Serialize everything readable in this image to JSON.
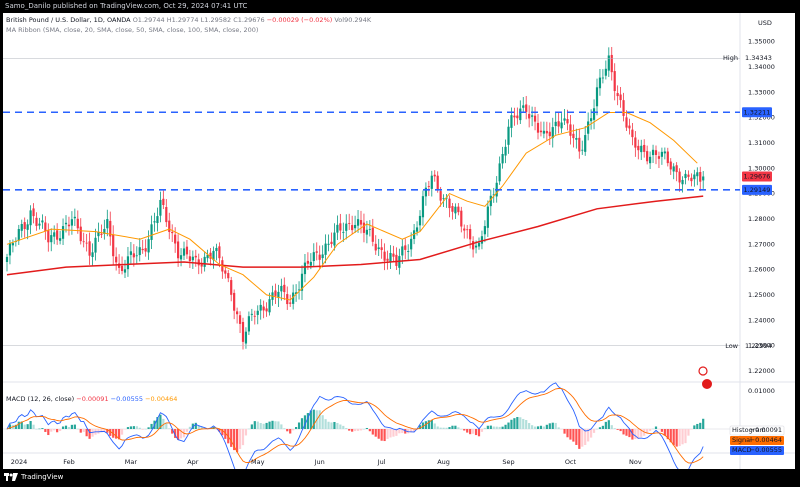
{
  "header": {
    "published_by": "Samo_Danilo published on TradingView.com, Oct 29, 2024 07:41 UTC"
  },
  "legend": {
    "symbol": "British Pound / U.S. Dollar, 1D, OANDA",
    "open": "O1.29744",
    "high": "H1.29774",
    "low": "L1.29582",
    "close": "C1.29676",
    "change": "−0.00029 (−0.02%)",
    "volume": "Vol90.294K",
    "ribbon": "MA Ribbon (SMA, close, 20, SMA, close, 50, SMA, close, 100, SMA, close, 200)",
    "macd_label": "MACD (12, 26, close)",
    "macd_v1": "−0.00091",
    "macd_v2": "−0.00555",
    "macd_v3": "−0.00464"
  },
  "currency": "USD",
  "footer": {
    "brand": "TradingView"
  },
  "colors": {
    "up": "#089981",
    "down": "#f23645",
    "sma20": "#ff9800",
    "sma200": "#e21b1b",
    "level": "#2962ff",
    "macd": "#2962ff",
    "signal": "#ff6d00"
  },
  "chart_data": {
    "type": "candlestick",
    "price_axis": {
      "ticks": [
        "1.35000",
        "1.34000",
        "1.33000",
        "1.32000",
        "1.31000",
        "1.30000",
        "1.29000",
        "1.28000",
        "1.27000",
        "1.26000",
        "1.25000",
        "1.24000",
        "1.23000",
        "1.22000"
      ],
      "range": [
        1.218,
        1.353
      ]
    },
    "time_axis": [
      "2024",
      "Feb",
      "Mar",
      "Apr",
      "May",
      "Jun",
      "Jul",
      "Aug",
      "Sep",
      "Oct",
      "Nov"
    ],
    "markers": {
      "high": {
        "label": "High",
        "value": "1.34343"
      },
      "low": {
        "label": "Low",
        "value": "1.22994"
      },
      "levels": [
        {
          "value": 1.32211,
          "label": "1.32211"
        },
        {
          "value": 1.29149,
          "label": "1.29149"
        }
      ],
      "last": {
        "value": 1.29676,
        "label": "1.29676"
      }
    },
    "anchors": [
      [
        0,
        1.265
      ],
      [
        8,
        1.283
      ],
      [
        14,
        1.272
      ],
      [
        22,
        1.279
      ],
      [
        28,
        1.268
      ],
      [
        34,
        1.277
      ],
      [
        38,
        1.26
      ],
      [
        46,
        1.268
      ],
      [
        52,
        1.285
      ],
      [
        58,
        1.268
      ],
      [
        64,
        1.262
      ],
      [
        70,
        1.268
      ],
      [
        76,
        1.252
      ],
      [
        80,
        1.233
      ],
      [
        84,
        1.243
      ],
      [
        92,
        1.251
      ],
      [
        96,
        1.248
      ],
      [
        102,
        1.262
      ],
      [
        110,
        1.272
      ],
      [
        118,
        1.28
      ],
      [
        124,
        1.271
      ],
      [
        132,
        1.262
      ],
      [
        138,
        1.275
      ],
      [
        144,
        1.297
      ],
      [
        150,
        1.285
      ],
      [
        156,
        1.275
      ],
      [
        160,
        1.268
      ],
      [
        164,
        1.287
      ],
      [
        170,
        1.316
      ],
      [
        176,
        1.325
      ],
      [
        182,
        1.311
      ],
      [
        188,
        1.321
      ],
      [
        194,
        1.306
      ],
      [
        200,
        1.33
      ],
      [
        204,
        1.342
      ],
      [
        208,
        1.326
      ],
      [
        212,
        1.309
      ],
      [
        218,
        1.306
      ],
      [
        224,
        1.303
      ],
      [
        230,
        1.295
      ],
      [
        234,
        1.296
      ],
      [
        236,
        1.2968
      ]
    ],
    "sma20": [
      [
        0,
        1.27
      ],
      [
        15,
        1.276
      ],
      [
        30,
        1.275
      ],
      [
        45,
        1.272
      ],
      [
        55,
        1.276
      ],
      [
        62,
        1.272
      ],
      [
        72,
        1.262
      ],
      [
        80,
        1.258
      ],
      [
        88,
        1.25
      ],
      [
        96,
        1.248
      ],
      [
        104,
        1.257
      ],
      [
        112,
        1.27
      ],
      [
        122,
        1.278
      ],
      [
        134,
        1.272
      ],
      [
        140,
        1.275
      ],
      [
        150,
        1.29
      ],
      [
        156,
        1.287
      ],
      [
        162,
        1.285
      ],
      [
        168,
        1.293
      ],
      [
        176,
        1.306
      ],
      [
        186,
        1.313
      ],
      [
        196,
        1.316
      ],
      [
        204,
        1.322
      ],
      [
        210,
        1.322
      ],
      [
        218,
        1.318
      ],
      [
        226,
        1.311
      ],
      [
        234,
        1.302
      ]
    ],
    "sma200": [
      [
        0,
        1.258
      ],
      [
        20,
        1.261
      ],
      [
        40,
        1.262
      ],
      [
        60,
        1.263
      ],
      [
        80,
        1.261
      ],
      [
        100,
        1.261
      ],
      [
        120,
        1.262
      ],
      [
        140,
        1.264
      ],
      [
        160,
        1.271
      ],
      [
        180,
        1.277
      ],
      [
        200,
        1.284
      ],
      [
        220,
        1.287
      ],
      [
        236,
        1.289
      ]
    ],
    "macd_axis": {
      "ticks": [
        "0.01000",
        "0.00000"
      ]
    },
    "macd_values": {
      "histogram": {
        "label": "Histogram",
        "value": "−0.00091"
      },
      "signal": {
        "label": "Signal",
        "value": "−0.00464"
      },
      "macd": {
        "label": "MACD",
        "value": "−0.00555"
      }
    }
  }
}
